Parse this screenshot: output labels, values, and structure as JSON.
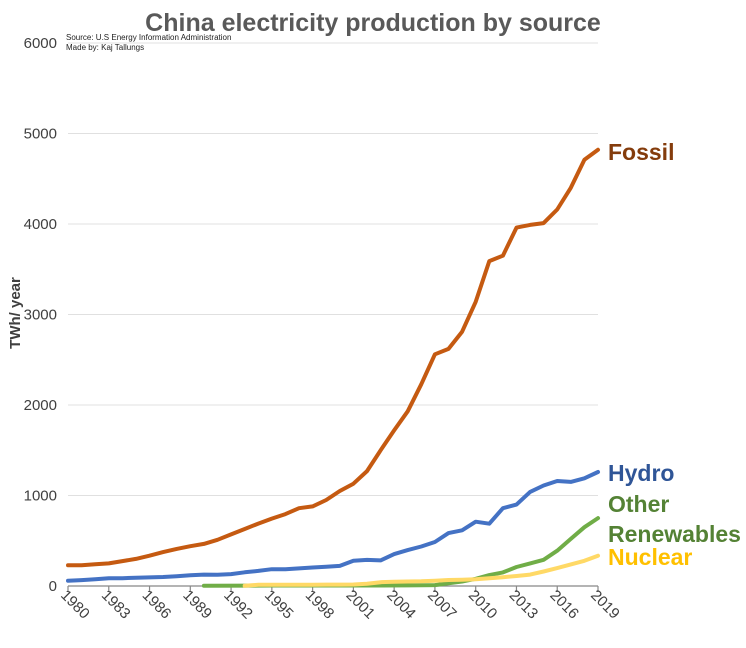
{
  "chart_data": {
    "type": "line",
    "title": "China electricity production by source",
    "source_note": "Source: U.S Energy Information Administration",
    "author_note": "Made by: Kaj Tallungs",
    "ylabel": "TWh/ year",
    "xlabel": "",
    "ylim": [
      0,
      6000
    ],
    "xlim": [
      1980,
      2019
    ],
    "yticks": [
      0,
      1000,
      2000,
      3000,
      4000,
      5000,
      6000
    ],
    "xticks": [
      1980,
      1983,
      1986,
      1989,
      1992,
      1995,
      1998,
      2001,
      2004,
      2007,
      2010,
      2013,
      2016,
      2019
    ],
    "grid": true,
    "legend": "direct labels at right end of lines",
    "series": [
      {
        "name": "Fossil",
        "color": "#c55a11",
        "label_color": "#843c0c",
        "x": [
          1980,
          1981,
          1982,
          1983,
          1984,
          1985,
          1986,
          1987,
          1988,
          1989,
          1990,
          1991,
          1992,
          1993,
          1994,
          1995,
          1996,
          1997,
          1998,
          1999,
          2000,
          2001,
          2002,
          2003,
          2004,
          2005,
          2006,
          2007,
          2008,
          2009,
          2010,
          2011,
          2012,
          2013,
          2014,
          2015,
          2016,
          2017,
          2018,
          2019
        ],
        "y": [
          230,
          230,
          240,
          250,
          275,
          300,
          335,
          375,
          410,
          440,
          465,
          510,
          570,
          630,
          690,
          745,
          795,
          860,
          880,
          950,
          1050,
          1130,
          1270,
          1500,
          1720,
          1930,
          2230,
          2560,
          2620,
          2810,
          3140,
          3590,
          3650,
          3960,
          3990,
          4010,
          4160,
          4400,
          4710,
          4820
        ]
      },
      {
        "name": "Hydro",
        "color": "#4472c4",
        "label_color": "#2f5597",
        "x": [
          1980,
          1981,
          1982,
          1983,
          1984,
          1985,
          1986,
          1987,
          1988,
          1989,
          1990,
          1991,
          1992,
          1993,
          1994,
          1995,
          1996,
          1997,
          1998,
          1999,
          2000,
          2001,
          2002,
          2003,
          2004,
          2005,
          2006,
          2007,
          2008,
          2009,
          2010,
          2011,
          2012,
          2013,
          2014,
          2015,
          2016,
          2017,
          2018,
          2019
        ],
        "y": [
          58,
          65,
          74,
          86,
          86,
          92,
          95,
          100,
          108,
          118,
          126,
          125,
          131,
          151,
          167,
          186,
          186,
          195,
          204,
          212,
          222,
          278,
          288,
          283,
          353,
          397,
          436,
          486,
          585,
          615,
          710,
          688,
          860,
          900,
          1040,
          1110,
          1160,
          1150,
          1190,
          1260
        ]
      },
      {
        "name": "Other Renewables",
        "label_lines": [
          "Other",
          "Renewables"
        ],
        "color": "#70ad47",
        "label_color": "#548235",
        "x": [
          1990,
          1995,
          2000,
          2003,
          2005,
          2007,
          2008,
          2009,
          2010,
          2011,
          2012,
          2013,
          2014,
          2015,
          2016,
          2017,
          2018,
          2019
        ],
        "y": [
          2,
          5,
          5,
          5,
          7,
          10,
          30,
          50,
          80,
          120,
          150,
          210,
          250,
          290,
          390,
          520,
          650,
          750
        ]
      },
      {
        "name": "Nuclear",
        "color": "#ffd966",
        "label_color": "#ffc000",
        "x": [
          1993,
          1994,
          1995,
          1996,
          1997,
          1998,
          1999,
          2000,
          2001,
          2002,
          2003,
          2004,
          2005,
          2006,
          2007,
          2008,
          2009,
          2010,
          2011,
          2012,
          2013,
          2014,
          2015,
          2016,
          2017,
          2018,
          2019
        ],
        "y": [
          2,
          13,
          13,
          14,
          14,
          14,
          15,
          16,
          17,
          25,
          42,
          48,
          50,
          52,
          59,
          66,
          70,
          74,
          86,
          97,
          110,
          126,
          160,
          198,
          239,
          278,
          335
        ]
      }
    ]
  }
}
